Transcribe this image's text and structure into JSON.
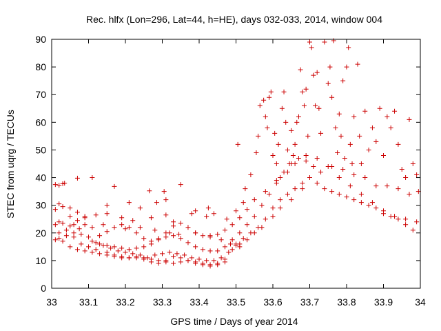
{
  "chart_data": {
    "type": "scatter",
    "title": "Rec. hlfx (Lon=296, Lat=44, h=HE), days 032-033, 2014, window 004",
    "xlabel": "GPS time / Days of year 2014",
    "ylabel": "STEC from uqrg / TECUs",
    "xlim": [
      33,
      34
    ],
    "ylim": [
      0,
      90
    ],
    "x_ticks": [
      "33",
      "33.1",
      "33.2",
      "33.3",
      "33.4",
      "33.5",
      "33.6",
      "33.7",
      "33.8",
      "33.9",
      "34"
    ],
    "y_ticks": [
      "0",
      "10",
      "20",
      "30",
      "40",
      "50",
      "60",
      "70",
      "80",
      "90"
    ],
    "grid": false,
    "legend": "none",
    "marker": "+",
    "marker_color": "#cc0000",
    "series": [
      {
        "points": [
          [
            33.01,
            37.5
          ],
          [
            33.02,
            37.2
          ],
          [
            33.03,
            37.8
          ],
          [
            33.035,
            38.0
          ],
          [
            33.07,
            39.8
          ],
          [
            33.11,
            40.0
          ],
          [
            33.17,
            36.8
          ],
          [
            33.265,
            35.2
          ],
          [
            33.305,
            35.0
          ],
          [
            33.35,
            37.5
          ],
          [
            33.01,
            23.0
          ],
          [
            33.02,
            24.0
          ],
          [
            33.03,
            23.5
          ],
          [
            33.05,
            22.5
          ],
          [
            33.06,
            23.0
          ],
          [
            33.075,
            21.5
          ],
          [
            33.09,
            23.0
          ],
          [
            33.11,
            22.0
          ],
          [
            33.14,
            23.0
          ],
          [
            33.2,
            21.5
          ],
          [
            33.24,
            22.0
          ],
          [
            33.28,
            21.0
          ],
          [
            33.32,
            20.0
          ],
          [
            33.345,
            19.5
          ],
          [
            33.39,
            20.0
          ],
          [
            33.43,
            19.0
          ],
          [
            33.46,
            17.5
          ],
          [
            33.485,
            16.0
          ],
          [
            33.51,
            15.0
          ],
          [
            33.53,
            17.5
          ],
          [
            33.55,
            20.0
          ],
          [
            33.57,
            22.0
          ],
          [
            33.6,
            26.0
          ],
          [
            33.62,
            29.0
          ],
          [
            33.65,
            32.0
          ],
          [
            33.68,
            36.0
          ],
          [
            33.7,
            40.0
          ],
          [
            33.73,
            42.0
          ],
          [
            33.76,
            44.0
          ],
          [
            33.79,
            43.0
          ],
          [
            33.82,
            41.0
          ],
          [
            33.85,
            40.0
          ],
          [
            33.88,
            37.0
          ],
          [
            33.91,
            37.0
          ],
          [
            33.94,
            36.0
          ],
          [
            33.97,
            34.0
          ],
          [
            33.01,
            28.5
          ],
          [
            33.02,
            30.5
          ],
          [
            33.03,
            29.5
          ],
          [
            33.05,
            29.0
          ],
          [
            33.07,
            27.5
          ],
          [
            33.09,
            26.0
          ],
          [
            33.12,
            26.5
          ],
          [
            33.15,
            27.0
          ],
          [
            33.19,
            25.5
          ],
          [
            33.22,
            24.5
          ],
          [
            33.27,
            25.5
          ],
          [
            33.31,
            26.5
          ],
          [
            33.33,
            24.0
          ],
          [
            33.38,
            27.0
          ],
          [
            33.42,
            26.0
          ],
          [
            33.44,
            27.0
          ],
          [
            33.475,
            25.0
          ],
          [
            33.5,
            28.0
          ],
          [
            33.52,
            31.0
          ],
          [
            33.55,
            32.0
          ],
          [
            33.58,
            35.0
          ],
          [
            33.61,
            39.0
          ],
          [
            33.64,
            42.0
          ],
          [
            33.66,
            45.0
          ],
          [
            33.69,
            48.0
          ],
          [
            33.72,
            47.0
          ],
          [
            33.75,
            44.0
          ],
          [
            33.78,
            40.0
          ],
          [
            33.81,
            37.0
          ],
          [
            33.84,
            34.0
          ],
          [
            33.87,
            31.0
          ],
          [
            33.9,
            28.0
          ],
          [
            33.93,
            26.0
          ],
          [
            33.96,
            25.0
          ],
          [
            33.99,
            24.0
          ],
          [
            33.01,
            17.5
          ],
          [
            33.02,
            18.0
          ],
          [
            33.03,
            17.0
          ],
          [
            33.04,
            19.0
          ],
          [
            33.06,
            18.5
          ],
          [
            33.08,
            16.0
          ],
          [
            33.1,
            15.0
          ],
          [
            33.12,
            14.0
          ],
          [
            33.15,
            13.0
          ],
          [
            33.17,
            12.0
          ],
          [
            33.19,
            11.5
          ],
          [
            33.21,
            11.0
          ],
          [
            33.23,
            11.0
          ],
          [
            33.25,
            10.5
          ],
          [
            33.27,
            9.5
          ],
          [
            33.29,
            9.0
          ],
          [
            33.31,
            10.0
          ],
          [
            33.33,
            11.5
          ],
          [
            33.35,
            11.0
          ],
          [
            33.37,
            10.0
          ],
          [
            33.39,
            9.0
          ],
          [
            33.41,
            8.5
          ],
          [
            33.43,
            8.5
          ],
          [
            33.45,
            9.0
          ],
          [
            33.47,
            10.5
          ],
          [
            33.49,
            14.0
          ],
          [
            33.5,
            15.5
          ],
          [
            33.51,
            16.0
          ],
          [
            33.02,
            20.0
          ],
          [
            33.04,
            21.0
          ],
          [
            33.06,
            20.0
          ],
          [
            33.08,
            19.5
          ],
          [
            33.1,
            18.5
          ],
          [
            33.12,
            16.5
          ],
          [
            33.14,
            15.5
          ],
          [
            33.16,
            14.5
          ],
          [
            33.18,
            13.5
          ],
          [
            33.2,
            13.0
          ],
          [
            33.22,
            12.5
          ],
          [
            33.24,
            12.0
          ],
          [
            33.26,
            11.0
          ],
          [
            33.28,
            12.0
          ],
          [
            33.3,
            12.5
          ],
          [
            33.32,
            13.0
          ],
          [
            33.34,
            12.5
          ],
          [
            33.36,
            12.0
          ],
          [
            33.38,
            11.0
          ],
          [
            33.4,
            10.5
          ],
          [
            33.42,
            10.0
          ],
          [
            33.44,
            10.0
          ],
          [
            33.46,
            11.0
          ],
          [
            33.48,
            13.0
          ],
          [
            33.5,
            16.0
          ],
          [
            33.52,
            18.0
          ],
          [
            33.54,
            20.0
          ],
          [
            33.56,
            22.0
          ],
          [
            33.58,
            25.0
          ],
          [
            33.6,
            29.0
          ],
          [
            33.62,
            32.0
          ],
          [
            33.64,
            34.0
          ],
          [
            33.66,
            36.0
          ],
          [
            33.68,
            38.0
          ],
          [
            33.7,
            40.0
          ],
          [
            33.72,
            38.0
          ],
          [
            33.74,
            36.0
          ],
          [
            33.76,
            35.0
          ],
          [
            33.78,
            34.0
          ],
          [
            33.8,
            33.0
          ],
          [
            33.82,
            32.0
          ],
          [
            33.84,
            31.0
          ],
          [
            33.86,
            30.0
          ],
          [
            33.88,
            29.0
          ],
          [
            33.9,
            27.0
          ],
          [
            33.92,
            26.0
          ],
          [
            33.94,
            25.0
          ],
          [
            33.96,
            23.0
          ],
          [
            33.98,
            21.0
          ],
          [
            33.05,
            15.0
          ],
          [
            33.07,
            14.0
          ],
          [
            33.09,
            13.5
          ],
          [
            33.11,
            13.0
          ],
          [
            33.13,
            12.5
          ],
          [
            33.15,
            12.0
          ],
          [
            33.17,
            11.5
          ],
          [
            33.19,
            11.0
          ],
          [
            33.21,
            11.0
          ],
          [
            33.23,
            11.5
          ],
          [
            33.25,
            11.0
          ],
          [
            33.27,
            10.5
          ],
          [
            33.29,
            10.0
          ],
          [
            33.31,
            9.5
          ],
          [
            33.33,
            9.0
          ],
          [
            33.35,
            9.5
          ],
          [
            33.37,
            10.0
          ],
          [
            33.39,
            9.5
          ],
          [
            33.41,
            9.0
          ],
          [
            33.43,
            8.0
          ],
          [
            33.45,
            8.5
          ],
          [
            33.47,
            9.5
          ],
          [
            33.11,
            17.0
          ],
          [
            33.13,
            16.0
          ],
          [
            33.15,
            15.5
          ],
          [
            33.17,
            15.0
          ],
          [
            33.19,
            14.5
          ],
          [
            33.21,
            14.0
          ],
          [
            33.23,
            14.5
          ],
          [
            33.25,
            15.0
          ],
          [
            33.27,
            16.0
          ],
          [
            33.29,
            17.5
          ],
          [
            33.31,
            18.5
          ],
          [
            33.33,
            19.0
          ],
          [
            33.35,
            18.0
          ],
          [
            33.37,
            16.5
          ],
          [
            33.39,
            15.0
          ],
          [
            33.41,
            14.0
          ],
          [
            33.43,
            13.5
          ],
          [
            33.45,
            13.5
          ],
          [
            33.47,
            15.0
          ],
          [
            33.49,
            17.5
          ],
          [
            33.51,
            20.0
          ],
          [
            33.53,
            23.0
          ],
          [
            33.55,
            26.0
          ],
          [
            33.57,
            30.0
          ],
          [
            33.59,
            34.0
          ],
          [
            33.61,
            38.0
          ],
          [
            33.63,
            42.0
          ],
          [
            33.65,
            45.0
          ],
          [
            33.67,
            47.0
          ],
          [
            33.69,
            46.0
          ],
          [
            33.71,
            44.0
          ],
          [
            33.13,
            19.0
          ],
          [
            33.15,
            20.5
          ],
          [
            33.17,
            22.0
          ],
          [
            33.19,
            23.0
          ],
          [
            33.21,
            22.0
          ],
          [
            33.23,
            20.0
          ],
          [
            33.25,
            18.0
          ],
          [
            33.27,
            17.0
          ],
          [
            33.29,
            18.0
          ],
          [
            33.31,
            20.0
          ],
          [
            33.33,
            22.5
          ],
          [
            33.35,
            23.5
          ],
          [
            33.37,
            22.0
          ],
          [
            33.39,
            20.0
          ],
          [
            33.41,
            19.0
          ],
          [
            33.43,
            18.5
          ],
          [
            33.45,
            19.5
          ],
          [
            33.47,
            21.0
          ],
          [
            33.49,
            23.0
          ],
          [
            33.51,
            25.5
          ],
          [
            33.53,
            28.5
          ],
          [
            33.05,
            26.0
          ],
          [
            33.07,
            24.5
          ],
          [
            33.09,
            25.5
          ],
          [
            33.15,
            30.0
          ],
          [
            33.21,
            31.0
          ],
          [
            33.24,
            29.0
          ],
          [
            33.285,
            31.0
          ],
          [
            33.31,
            32.0
          ],
          [
            33.39,
            28.0
          ],
          [
            33.425,
            29.0
          ],
          [
            33.505,
            52.0
          ],
          [
            33.525,
            36.0
          ],
          [
            33.54,
            41.0
          ],
          [
            33.555,
            49.0
          ],
          [
            33.56,
            55.0
          ],
          [
            33.565,
            66.0
          ],
          [
            33.575,
            68.0
          ],
          [
            33.58,
            62.0
          ],
          [
            33.585,
            58.0
          ],
          [
            33.59,
            69.0
          ],
          [
            33.595,
            71.0
          ],
          [
            33.6,
            48.0
          ],
          [
            33.605,
            56.0
          ],
          [
            33.61,
            45.0
          ],
          [
            33.615,
            52.0
          ],
          [
            33.62,
            40.0
          ],
          [
            33.625,
            65.0
          ],
          [
            33.63,
            71.0
          ],
          [
            33.635,
            60.0
          ],
          [
            33.64,
            50.0
          ],
          [
            33.645,
            45.0
          ],
          [
            33.65,
            57.0
          ],
          [
            33.655,
            48.0
          ],
          [
            33.66,
            52.0
          ],
          [
            33.665,
            60.0
          ],
          [
            33.67,
            62.0
          ],
          [
            33.675,
            79.0
          ],
          [
            33.68,
            71.0
          ],
          [
            33.685,
            66.0
          ],
          [
            33.69,
            72.0
          ],
          [
            33.695,
            55.0
          ],
          [
            33.7,
            89.0
          ],
          [
            33.705,
            87.0
          ],
          [
            33.71,
            77.0
          ],
          [
            33.715,
            66.0
          ],
          [
            33.72,
            78.0
          ],
          [
            33.725,
            65.0
          ],
          [
            33.73,
            56.0
          ],
          [
            33.74,
            89.0
          ],
          [
            33.75,
            74.0
          ],
          [
            33.755,
            80.0
          ],
          [
            33.76,
            69.0
          ],
          [
            33.765,
            89.5
          ],
          [
            33.77,
            58.0
          ],
          [
            33.775,
            49.0
          ],
          [
            33.78,
            63.0
          ],
          [
            33.785,
            55.0
          ],
          [
            33.79,
            75.0
          ],
          [
            33.795,
            47.0
          ],
          [
            33.8,
            80.0
          ],
          [
            33.805,
            87.0
          ],
          [
            33.81,
            52.0
          ],
          [
            33.815,
            45.0
          ],
          [
            33.82,
            62.0
          ],
          [
            33.83,
            81.0
          ],
          [
            33.835,
            55.0
          ],
          [
            33.84,
            45.0
          ],
          [
            33.85,
            64.0
          ],
          [
            33.86,
            50.0
          ],
          [
            33.87,
            58.0
          ],
          [
            33.88,
            53.0
          ],
          [
            33.89,
            65.0
          ],
          [
            33.9,
            48.0
          ],
          [
            33.91,
            62.0
          ],
          [
            33.92,
            58.0
          ],
          [
            33.93,
            64.0
          ],
          [
            33.94,
            52.0
          ],
          [
            33.95,
            43.0
          ],
          [
            33.96,
            40.0
          ],
          [
            33.97,
            61.0
          ],
          [
            33.98,
            45.0
          ],
          [
            33.99,
            41.0
          ],
          [
            33.995,
            35.0
          ]
        ]
      }
    ]
  }
}
